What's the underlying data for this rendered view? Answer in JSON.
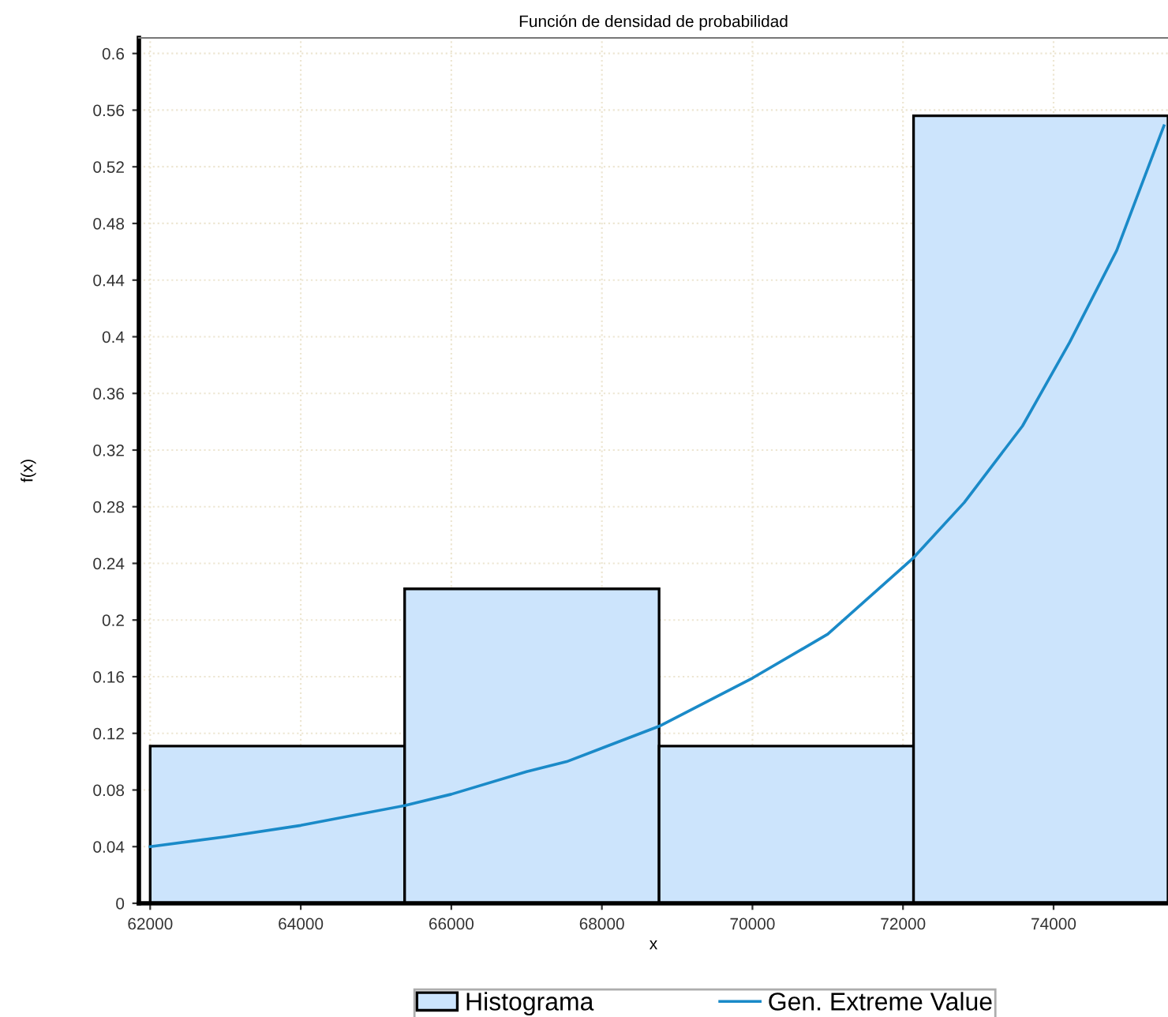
{
  "chart_data": {
    "type": "histogram",
    "title": "Función de densidad de probabilidad",
    "xlabel": "x",
    "ylabel": "f(x)",
    "bins": [
      62000,
      65380,
      68760,
      72140,
      75520
    ],
    "series": [
      {
        "name": "Histograma",
        "color": "#cce4fc",
        "values": [
          0.111,
          0.222,
          0.111,
          0.556
        ]
      },
      {
        "name": "Gen. Extreme Value",
        "type": "line",
        "color": "#1a8ac8",
        "x": [
          62000,
          63000,
          64000,
          65380,
          66000,
          67000,
          67532,
          68760,
          70000,
          71000,
          72140,
          72814,
          73587,
          74213,
          74839,
          75466
        ],
        "values": [
          0.04,
          0.047,
          0.055,
          0.069,
          0.077,
          0.093,
          0.1,
          0.125,
          0.159,
          0.19,
          0.244,
          0.283,
          0.337,
          0.396,
          0.461,
          0.549
        ]
      }
    ],
    "xlim": [
      61850,
      75520
    ],
    "ylim": [
      0,
      0.611
    ],
    "xticks": [
      62000,
      64000,
      66000,
      68000,
      70000,
      72000,
      74000
    ],
    "yticks": [
      {
        "value": 0,
        "label": "0"
      },
      0.04,
      0.08,
      0.12,
      0.16,
      0.2,
      0.24,
      0.28,
      0.32,
      0.36,
      0.4,
      0.44,
      0.48,
      0.52,
      0.56,
      0.6
    ],
    "grid": true,
    "legend": "bottom"
  }
}
